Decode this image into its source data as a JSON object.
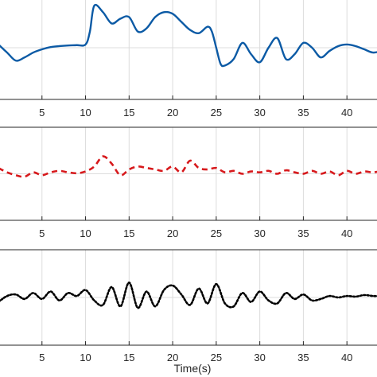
{
  "chart_data": [
    {
      "type": "line",
      "xlabel": "",
      "ylabel": "",
      "xlim": [
        0,
        44
      ],
      "ylim": [
        -1.6,
        1.6
      ],
      "xticks": [
        5,
        10,
        15,
        20,
        25,
        30,
        35,
        40
      ],
      "xtick_labels": [
        "5",
        "10",
        "15",
        "20",
        "25",
        "30",
        "35",
        "40"
      ],
      "grid": true,
      "series": [
        {
          "color": "#0b5aa5",
          "style": "solid",
          "x": [
            0,
            1,
            2,
            3,
            4,
            5,
            6,
            7,
            8,
            9,
            10,
            10.5,
            11,
            12,
            13,
            14,
            15,
            16,
            17,
            18,
            19,
            20,
            21,
            22,
            23,
            24,
            24.5,
            25,
            25.5,
            26,
            27,
            28,
            29,
            30,
            31,
            32,
            33,
            34,
            35,
            36,
            37,
            38,
            39,
            40,
            41,
            42,
            43,
            44
          ],
          "y": [
            0.1,
            -0.15,
            -0.4,
            -0.3,
            -0.15,
            -0.05,
            0.02,
            0.05,
            0.07,
            0.08,
            0.1,
            0.5,
            1.3,
            1.1,
            0.75,
            0.9,
            0.95,
            0.5,
            0.6,
            0.95,
            1.1,
            1.05,
            0.8,
            0.55,
            0.45,
            0.65,
            0.5,
            0.0,
            -0.5,
            -0.55,
            -0.35,
            0.15,
            -0.2,
            -0.45,
            0.0,
            0.3,
            -0.35,
            -0.2,
            0.15,
            0.0,
            -0.3,
            -0.1,
            0.05,
            0.1,
            0.05,
            -0.05,
            -0.15,
            -0.1
          ]
        }
      ]
    },
    {
      "type": "line",
      "xlabel": "",
      "ylabel": "",
      "xlim": [
        0,
        44
      ],
      "ylim": [
        -1.6,
        1.6
      ],
      "xticks": [
        5,
        10,
        15,
        20,
        25,
        30,
        35,
        40
      ],
      "xtick_labels": [
        "5",
        "10",
        "15",
        "20",
        "25",
        "30",
        "35",
        "40"
      ],
      "grid": true,
      "series": [
        {
          "color": "#d7191c",
          "style": "dashed",
          "x": [
            0,
            1,
            2,
            3,
            4,
            5,
            6,
            7,
            8,
            9,
            10,
            11,
            12,
            13,
            14,
            15,
            16,
            17,
            18,
            19,
            20,
            21,
            22,
            23,
            24,
            25,
            26,
            27,
            28,
            29,
            30,
            31,
            32,
            33,
            34,
            35,
            36,
            37,
            38,
            39,
            40,
            41,
            42,
            43,
            44
          ],
          "y": [
            0.2,
            0.05,
            -0.05,
            -0.1,
            0.05,
            -0.05,
            0.05,
            0.1,
            0.05,
            0.02,
            0.08,
            0.25,
            0.6,
            0.35,
            -0.05,
            0.15,
            0.25,
            0.2,
            0.15,
            0.1,
            0.25,
            0.05,
            0.45,
            0.2,
            0.15,
            0.2,
            0.05,
            0.1,
            0.0,
            0.08,
            0.05,
            0.1,
            0.0,
            0.12,
            0.05,
            0.0,
            0.1,
            0.0,
            0.08,
            -0.05,
            0.1,
            0.0,
            0.08,
            0.05,
            0.1
          ]
        }
      ]
    },
    {
      "type": "line",
      "xlabel": "Time(s)",
      "ylabel": "",
      "xlim": [
        0,
        44
      ],
      "ylim": [
        -1.6,
        1.6
      ],
      "xticks": [
        5,
        10,
        15,
        20,
        25,
        30,
        35,
        40
      ],
      "xtick_labels": [
        "5",
        "10",
        "15",
        "20",
        "25",
        "30",
        "35",
        "40"
      ],
      "grid": true,
      "series": [
        {
          "color": "#000000",
          "style": "dotted",
          "x": [
            0,
            1,
            2,
            3,
            4,
            5,
            6,
            7,
            8,
            9,
            10,
            11,
            12,
            13,
            14,
            15,
            16,
            17,
            18,
            19,
            20,
            21,
            22,
            23,
            24,
            25,
            26,
            27,
            28,
            29,
            30,
            31,
            32,
            33,
            34,
            35,
            36,
            37,
            38,
            39,
            40,
            41,
            42,
            43,
            44
          ],
          "y": [
            -0.15,
            0.05,
            0.1,
            -0.05,
            0.15,
            -0.05,
            0.2,
            -0.1,
            0.15,
            0.05,
            0.25,
            -0.1,
            -0.25,
            0.35,
            -0.3,
            0.5,
            -0.35,
            0.2,
            -0.3,
            0.25,
            0.4,
            0.1,
            -0.25,
            0.3,
            -0.2,
            0.45,
            -0.2,
            -0.3,
            0.15,
            -0.15,
            0.2,
            -0.1,
            -0.2,
            0.15,
            -0.05,
            0.1,
            -0.1,
            -0.05,
            0.05,
            0.0,
            0.05,
            0.03,
            0.08,
            0.05,
            0.05
          ]
        }
      ]
    }
  ]
}
